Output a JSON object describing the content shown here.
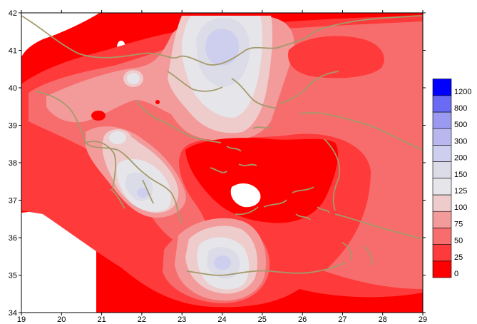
{
  "chart_data": {
    "type": "heatmap",
    "title": "",
    "xlabel": "",
    "ylabel": "",
    "xlim": [
      19,
      29
    ],
    "ylim": [
      34,
      42
    ],
    "x_ticks": [
      "19",
      "20",
      "21",
      "22",
      "23",
      "24",
      "25",
      "26",
      "27",
      "28",
      "29"
    ],
    "y_ticks": [
      "34",
      "35",
      "36",
      "37",
      "38",
      "39",
      "40",
      "41",
      "42"
    ],
    "legend": {
      "placement": "right",
      "levels": [
        {
          "label": "0",
          "color": "#ff0000"
        },
        {
          "label": "25",
          "color": "#ff3a3a"
        },
        {
          "label": "50",
          "color": "#f76d6d"
        },
        {
          "label": "75",
          "color": "#f39a9a"
        },
        {
          "label": "100",
          "color": "#eecccc"
        },
        {
          "label": "125",
          "color": "#e6e6ea"
        },
        {
          "label": "150",
          "color": "#dcdce8"
        },
        {
          "label": "200",
          "color": "#ceceee"
        },
        {
          "label": "300",
          "color": "#b8b8ee"
        },
        {
          "label": "500",
          "color": "#9a9af0"
        },
        {
          "label": "800",
          "color": "#6a6af4"
        },
        {
          "label": "1200",
          "color": "#0000ff"
        }
      ]
    },
    "coastline_color": "#a49a6c"
  }
}
